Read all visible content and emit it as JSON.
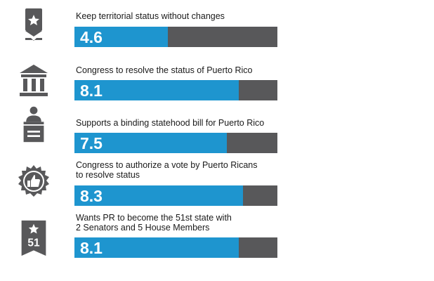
{
  "colors": {
    "fill": "#1e95cf",
    "track": "#58585a",
    "icon": "#58585a"
  },
  "chart_data": {
    "type": "bar",
    "orientation": "horizontal",
    "scale_max": 10,
    "categories": [
      "Keep territorial status without changes",
      "Congress to resolve the status of Puerto Rico",
      "Supports a binding statehood bill for Puerto Rico",
      "Congress to authorize a vote by Puerto Ricans to resolve status",
      "Wants PR to become the 51st state with 2 Senators and 5 House Members"
    ],
    "values": [
      4.6,
      8.1,
      7.5,
      8.3,
      8.1
    ]
  },
  "items": [
    {
      "label_lines": [
        "Keep territorial status without changes"
      ],
      "value_text": "4.6",
      "icon": "ribbon-star-icon"
    },
    {
      "label_lines": [
        "Congress to resolve the status of Puerto Rico"
      ],
      "value_text": "8.1",
      "icon": "capitol-building-icon"
    },
    {
      "label_lines": [
        "Supports a binding statehood bill for Puerto Rico"
      ],
      "value_text": "7.5",
      "icon": "speaker-podium-icon"
    },
    {
      "label_lines": [
        "Congress to authorize a vote by Puerto Ricans",
        "to resolve status"
      ],
      "value_text": "8.3",
      "icon": "thumbs-up-badge-icon"
    },
    {
      "label_lines": [
        "Wants PR to become the 51st state with",
        "2 Senators and 5 House Members"
      ],
      "value_text": "8.1",
      "icon": "star-51-banner-icon",
      "icon_text": "51"
    }
  ]
}
